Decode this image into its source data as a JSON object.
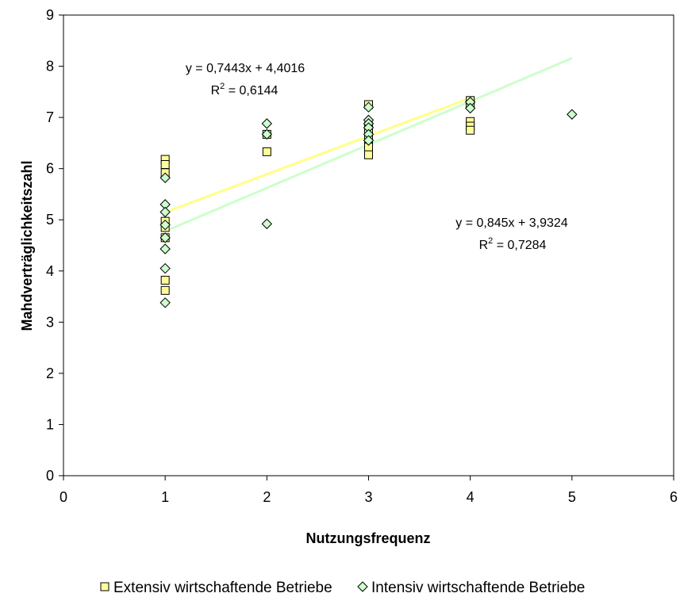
{
  "chart_data": {
    "type": "scatter",
    "xlabel": "Nutzungsfrequenz",
    "ylabel": "Mahdverträglichkeitszahl",
    "xlim": [
      0,
      6
    ],
    "ylim": [
      0,
      9
    ],
    "xticks": [
      "0",
      "1",
      "2",
      "3",
      "4",
      "5",
      "6"
    ],
    "yticks": [
      "0",
      "1",
      "2",
      "3",
      "4",
      "5",
      "6",
      "7",
      "8",
      "9"
    ],
    "grid": false,
    "legend_position": "bottom",
    "series": [
      {
        "name": "Extensiv wirtschaftende Betriebe",
        "marker": "square",
        "color": "#FFFF99",
        "trendline_color": "#FFFF88",
        "points": [
          [
            1,
            6.18
          ],
          [
            1,
            6.08
          ],
          [
            1,
            5.92
          ],
          [
            1,
            4.97
          ],
          [
            1,
            4.85
          ],
          [
            1,
            4.65
          ],
          [
            1,
            3.82
          ],
          [
            1,
            3.62
          ],
          [
            2,
            6.67
          ],
          [
            2,
            6.33
          ],
          [
            3,
            7.25
          ],
          [
            3,
            6.83
          ],
          [
            3,
            6.75
          ],
          [
            3,
            6.58
          ],
          [
            3,
            6.42
          ],
          [
            3,
            6.27
          ],
          [
            4,
            7.33
          ],
          [
            4,
            7.25
          ],
          [
            4,
            6.92
          ],
          [
            4,
            6.83
          ],
          [
            4,
            6.75
          ]
        ],
        "trendline": {
          "equation": "y = 0,7443x + 4,4016",
          "r2_label": "R",
          "r2_sup": "2",
          "r2_value": " = 0,6144",
          "slope": 0.7443,
          "intercept": 4.4016,
          "x_range": [
            1,
            4
          ]
        }
      },
      {
        "name": "Intensiv wirtschaftende Betriebe",
        "marker": "diamond",
        "color": "#CCFFCC",
        "trendline_color": "#CCFFCC",
        "points": [
          [
            1,
            5.82
          ],
          [
            1,
            5.3
          ],
          [
            1,
            5.15
          ],
          [
            1,
            4.9
          ],
          [
            1,
            4.65
          ],
          [
            1,
            4.43
          ],
          [
            1,
            4.05
          ],
          [
            1,
            3.38
          ],
          [
            2,
            6.88
          ],
          [
            2,
            6.67
          ],
          [
            2,
            4.92
          ],
          [
            3,
            7.2
          ],
          [
            3,
            6.95
          ],
          [
            3,
            6.88
          ],
          [
            3,
            6.8
          ],
          [
            3,
            6.67
          ],
          [
            3,
            6.55
          ],
          [
            4,
            7.3
          ],
          [
            4,
            7.18
          ],
          [
            5,
            7.06
          ]
        ],
        "trendline": {
          "equation": "y = 0,845x + 3,9324",
          "r2_label": "R",
          "r2_sup": "2",
          "r2_value": " = 0,7284",
          "slope": 0.845,
          "intercept": 3.9324,
          "x_range": [
            1,
            5
          ]
        }
      }
    ]
  }
}
